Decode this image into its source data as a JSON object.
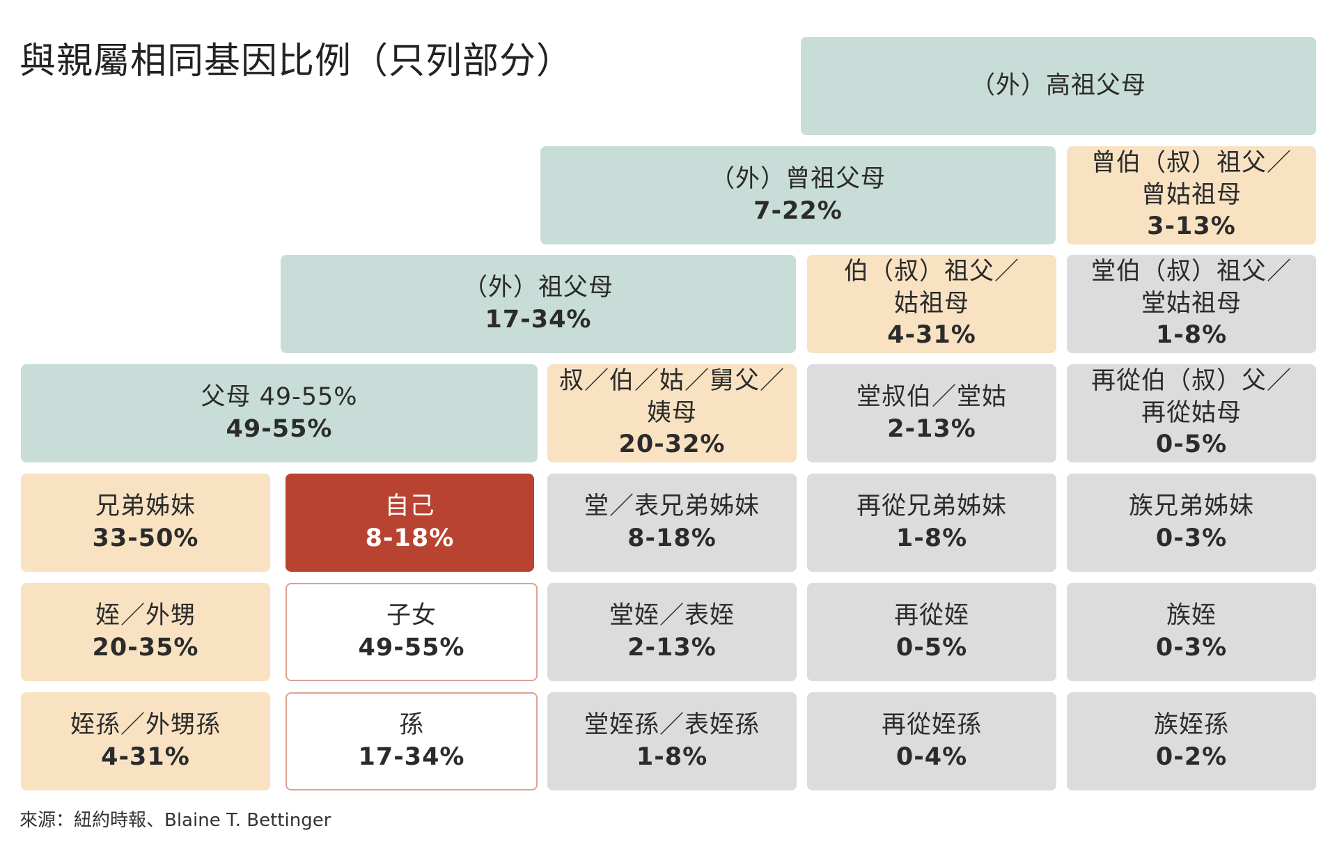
{
  "title": "與親屬相同基因比例（只列部分）",
  "source": "來源：紐約時報、Blaine T. Bettinger",
  "colors": {
    "teal": "#c8ddd7",
    "peach": "#f8e2c2",
    "grey": "#dcdcdc",
    "self_red": "#b94331",
    "white_border": "#d9a391"
  },
  "cells": {
    "great_great_grandparents": {
      "label": "（外）高祖父母",
      "value": ""
    },
    "great_grandparents": {
      "label": "（外）曾祖父母",
      "value": "7-22%"
    },
    "great_grand_uncle": {
      "label": "曾伯（叔）祖父／\n曾姑祖母",
      "value": "3-13%"
    },
    "grandparents": {
      "label": "（外）祖父母",
      "value": "17-34%"
    },
    "grand_uncle": {
      "label": "伯（叔）祖父／\n姑祖母",
      "value": "4-31%"
    },
    "first_cousin_grand_uncle": {
      "label": "堂伯（叔）祖父／\n堂姑祖母",
      "value": "1-8%"
    },
    "parents": {
      "label": "父母 49-55%",
      "value": "49-55%"
    },
    "uncle_aunt": {
      "label": "叔／伯／姑／舅父／姨母",
      "value": "20-32%"
    },
    "first_cousin_uncle": {
      "label": "堂叔伯／堂姑",
      "value": "2-13%"
    },
    "second_cousin_uncle": {
      "label": "再從伯（叔）父／\n再從姑母",
      "value": "0-5%"
    },
    "siblings": {
      "label": "兄弟姊妹",
      "value": "33-50%"
    },
    "self": {
      "label": "自己",
      "value": "8-18%"
    },
    "first_cousins": {
      "label": "堂／表兄弟姊妹",
      "value": "8-18%"
    },
    "second_cousins": {
      "label": "再從兄弟姊妹",
      "value": "1-8%"
    },
    "third_cousins": {
      "label": "族兄弟姊妹",
      "value": "0-3%"
    },
    "nephews": {
      "label": "姪／外甥",
      "value": "20-35%"
    },
    "children": {
      "label": "子女",
      "value": "49-55%"
    },
    "first_cousin_nephews": {
      "label": "堂姪／表姪",
      "value": "2-13%"
    },
    "second_cousin_nephews": {
      "label": "再從姪",
      "value": "0-5%"
    },
    "third_cousin_nephews": {
      "label": "族姪",
      "value": "0-3%"
    },
    "grand_nephews": {
      "label": "姪孫／外甥孫",
      "value": "4-31%"
    },
    "grandchildren": {
      "label": "孫",
      "value": "17-34%"
    },
    "first_cousin_grand_nephews": {
      "label": "堂姪孫／表姪孫",
      "value": "1-8%"
    },
    "second_cousin_grand_nephews": {
      "label": "再從姪孫",
      "value": "0-4%"
    },
    "third_cousin_grand_nephews": {
      "label": "族姪孫",
      "value": "0-2%"
    }
  }
}
